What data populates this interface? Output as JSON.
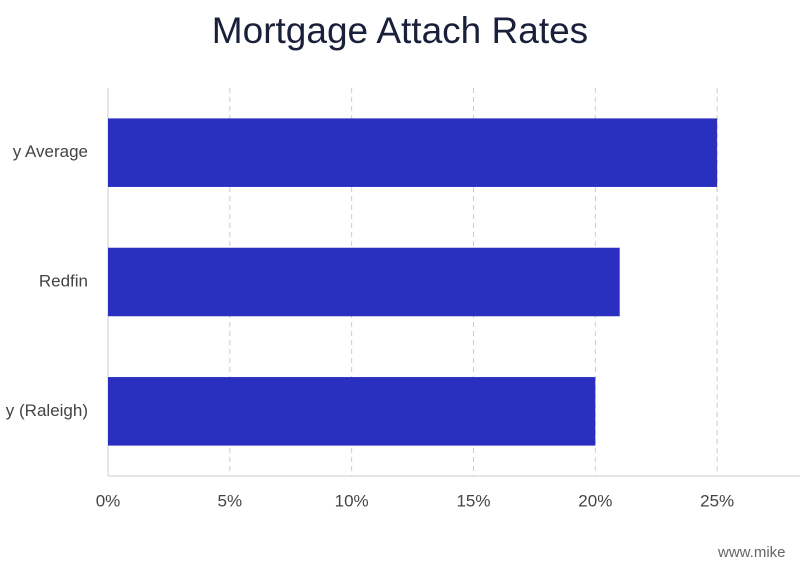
{
  "chart_data": {
    "type": "barh",
    "title": "Mortgage Attach Rates",
    "categories": [
      "y Average",
      "Redfin",
      "y (Raleigh)"
    ],
    "values": [
      25,
      21,
      20
    ],
    "color": "#2a2fc0",
    "xlim": [
      0,
      28.4
    ],
    "xticks": [
      {
        "value": 0,
        "label": "0%"
      },
      {
        "value": 5,
        "label": "5%"
      },
      {
        "value": 10,
        "label": "10%"
      },
      {
        "value": 15,
        "label": "15%"
      },
      {
        "value": 20,
        "label": "20%"
      },
      {
        "value": 25,
        "label": "25%"
      }
    ],
    "grid": true,
    "footer": "www.mike"
  }
}
